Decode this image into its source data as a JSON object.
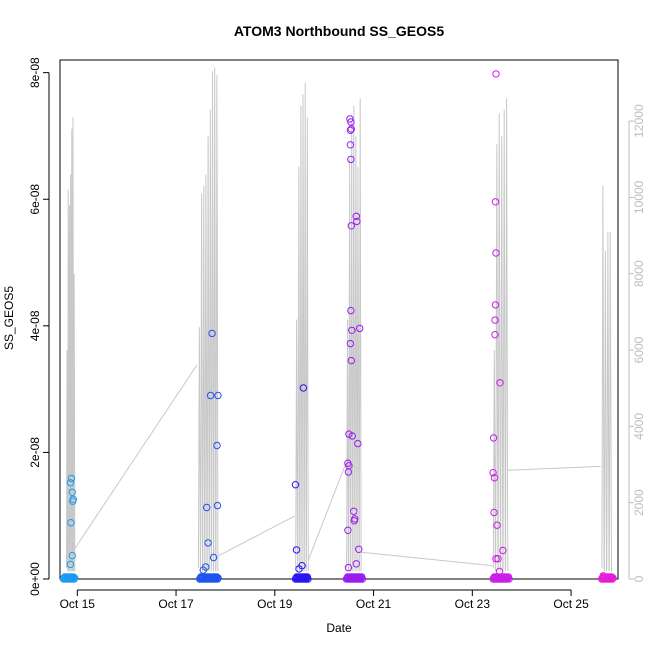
{
  "chart_data": {
    "type": "scatter",
    "title": "ATOM3 Northbound SS_GEOS5",
    "xlabel": "Date",
    "ylabel": "SS_GEOS5",
    "x_range_days": [
      14.65,
      25.95
    ],
    "ylim": [
      0,
      8.2e-08
    ],
    "y2lim": [
      0,
      13600
    ],
    "x_ticks": [
      {
        "day": 15,
        "label": "Oct 15"
      },
      {
        "day": 17,
        "label": "Oct 17"
      },
      {
        "day": 19,
        "label": "Oct 19"
      },
      {
        "day": 21,
        "label": "Oct 21"
      },
      {
        "day": 23,
        "label": "Oct 23"
      },
      {
        "day": 25,
        "label": "Oct 25"
      }
    ],
    "y_ticks": [
      {
        "value": 0,
        "label": "0e+00"
      },
      {
        "value": 2e-08,
        "label": "2e-08"
      },
      {
        "value": 4e-08,
        "label": "4e-08"
      },
      {
        "value": 6e-08,
        "label": "6e-08"
      },
      {
        "value": 8e-08,
        "label": "8e-08"
      }
    ],
    "y2_ticks": [
      {
        "value": 0,
        "label": "0"
      },
      {
        "value": 2000,
        "label": "2000"
      },
      {
        "value": 4000,
        "label": "4000"
      },
      {
        "value": 6000,
        "label": "6000"
      },
      {
        "value": 8000,
        "label": "8000"
      },
      {
        "value": 10000,
        "label": "10000"
      },
      {
        "value": 12000,
        "label": "12000"
      }
    ],
    "altitude_series": {
      "name": "altitude",
      "color": "#c8c8c8",
      "flights": [
        {
          "start": 14.78,
          "end": 14.95,
          "peaks": [
            6000,
            10200,
            9800,
            10600,
            11800,
            12100,
            8000
          ]
        },
        {
          "start": 17.45,
          "end": 17.85,
          "peaks": [
            6600,
            10100,
            10300,
            10600,
            11600,
            12300,
            13300,
            13400,
            13200
          ]
        },
        {
          "start": 19.42,
          "end": 19.68,
          "peaks": [
            6800,
            10800,
            12400,
            12700,
            13000,
            12100
          ]
        },
        {
          "start": 20.45,
          "end": 20.75,
          "peaks": [
            6800,
            11000,
            12000,
            12400,
            11600,
            10800,
            12600
          ]
        },
        {
          "start": 23.42,
          "end": 23.72,
          "peaks": [
            6000,
            11400,
            12200,
            11600,
            12300,
            12600
          ]
        },
        {
          "start": 25.62,
          "end": 25.82,
          "peaks": [
            10300,
            8600,
            9100,
            9100
          ]
        }
      ],
      "transits": [
        {
          "x0": 14.95,
          "y0": 800,
          "x1": 17.42,
          "y1": 5600
        },
        {
          "x0": 17.85,
          "y0": 600,
          "x1": 19.4,
          "y1": 1650
        },
        {
          "x0": 19.68,
          "y0": 500,
          "x1": 20.43,
          "y1": 3000
        },
        {
          "x0": 20.75,
          "y0": 700,
          "x1": 23.4,
          "y1": 350
        },
        {
          "x0": 23.72,
          "y0": 2850,
          "x1": 25.6,
          "y1": 2950
        }
      ]
    },
    "series": [
      {
        "name": "",
        "color": "#1a9bf2",
        "values": [
          [
            14.88,
            1.59e-08
          ],
          [
            14.86,
            1.52e-08
          ],
          [
            14.9,
            1.37e-08
          ],
          [
            14.92,
            1.26e-08
          ],
          [
            14.91,
            1.23e-08
          ],
          [
            14.87,
            8.9e-09
          ],
          [
            14.9,
            3.7e-09
          ],
          [
            14.86,
            2.3e-09
          ]
        ]
      },
      {
        "name": "",
        "color": "#1f54f0",
        "values": [
          [
            17.73,
            3.88e-08
          ],
          [
            17.7,
            2.9e-08
          ],
          [
            17.85,
            2.9e-08
          ],
          [
            17.83,
            2.11e-08
          ],
          [
            17.84,
            1.16e-08
          ],
          [
            17.62,
            1.13e-08
          ],
          [
            17.65,
            5.7e-09
          ],
          [
            17.76,
            3.4e-09
          ],
          [
            17.6,
            1.9e-09
          ],
          [
            17.55,
            1.4e-09
          ]
        ]
      },
      {
        "name": "",
        "color": "#2b16f0",
        "values": [
          [
            19.58,
            3.02e-08
          ],
          [
            19.42,
            1.49e-08
          ],
          [
            19.44,
            4.6e-09
          ],
          [
            19.55,
            2.1e-09
          ],
          [
            19.49,
            1.6e-09
          ]
        ]
      },
      {
        "name": "",
        "color": "#9a1ef0",
        "values": [
          [
            20.52,
            7.27e-08
          ],
          [
            20.54,
            7.22e-08
          ],
          [
            20.53,
            7.09e-08
          ],
          [
            20.55,
            7.11e-08
          ],
          [
            20.53,
            6.86e-08
          ],
          [
            20.54,
            6.63e-08
          ],
          [
            20.65,
            5.73e-08
          ],
          [
            20.66,
            5.65e-08
          ],
          [
            20.55,
            5.58e-08
          ],
          [
            20.54,
            4.24e-08
          ],
          [
            20.72,
            3.96e-08
          ],
          [
            20.56,
            3.93e-08
          ],
          [
            20.53,
            3.72e-08
          ],
          [
            20.55,
            3.45e-08
          ],
          [
            20.5,
            2.29e-08
          ],
          [
            20.57,
            2.26e-08
          ],
          [
            20.68,
            2.14e-08
          ],
          [
            20.48,
            1.83e-08
          ],
          [
            20.5,
            1.79e-08
          ],
          [
            20.49,
            1.69e-08
          ],
          [
            20.6,
            1.07e-08
          ],
          [
            20.62,
            9.5e-09
          ],
          [
            20.61,
            9.2e-09
          ],
          [
            20.48,
            7.7e-09
          ],
          [
            20.7,
            4.7e-09
          ],
          [
            20.65,
            2.4e-09
          ],
          [
            20.49,
            1.8e-09
          ]
        ]
      },
      {
        "name": "",
        "color": "#cb1ee9",
        "values": [
          [
            23.48,
            7.98e-08
          ],
          [
            23.47,
            5.96e-08
          ],
          [
            23.48,
            5.15e-08
          ],
          [
            23.47,
            4.33e-08
          ],
          [
            23.46,
            4.09e-08
          ],
          [
            23.46,
            3.86e-08
          ],
          [
            23.56,
            3.1e-08
          ],
          [
            23.43,
            2.23e-08
          ],
          [
            23.42,
            1.68e-08
          ],
          [
            23.45,
            1.6e-08
          ],
          [
            23.44,
            1.05e-08
          ],
          [
            23.5,
            8.5e-09
          ],
          [
            23.62,
            4.5e-09
          ],
          [
            23.48,
            3.2e-09
          ],
          [
            23.52,
            3.2e-09
          ],
          [
            23.55,
            1.2e-09
          ]
        ]
      },
      {
        "name": "",
        "color": "#e71dd9",
        "values": [
          [
            25.65,
            5e-10
          ],
          [
            25.72,
            3e-10
          ]
        ]
      }
    ],
    "baseline_clusters": [
      {
        "color": "#1a9bf2",
        "x0": 14.72,
        "x1": 14.96
      },
      {
        "color": "#1f54f0",
        "x0": 17.48,
        "x1": 17.86
      },
      {
        "color": "#2b16f0",
        "x0": 19.42,
        "x1": 19.68
      },
      {
        "color": "#9a1ef0",
        "x0": 20.45,
        "x1": 20.78
      },
      {
        "color": "#cb1ee9",
        "x0": 23.42,
        "x1": 23.75
      },
      {
        "color": "#e71dd9",
        "x0": 25.62,
        "x1": 25.85
      }
    ]
  }
}
